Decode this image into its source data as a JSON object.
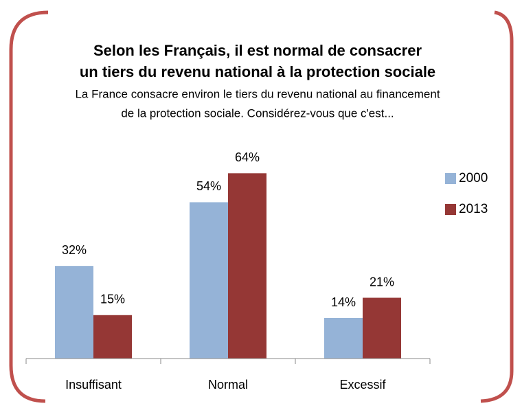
{
  "chart_data": {
    "type": "bar",
    "title": [
      "Selon les Français, il est normal de consacrer",
      "un tiers du revenu national à la protection sociale"
    ],
    "subtitle": [
      "La France consacre environ le tiers du revenu national au financement",
      "de la protection sociale. Considérez-vous que c'est..."
    ],
    "categories": [
      "Insuffisant",
      "Normal",
      "Excessif"
    ],
    "series": [
      {
        "name": "2000",
        "color": "#95b3d7",
        "values": [
          32,
          54,
          14
        ],
        "value_labels": [
          "32%",
          "54%",
          "14%"
        ]
      },
      {
        "name": "2013",
        "color": "#953735",
        "values": [
          15,
          64,
          21
        ],
        "value_labels": [
          "15%",
          "64%",
          "21%"
        ]
      }
    ],
    "ylim": [
      0,
      70
    ],
    "legend": "right"
  }
}
